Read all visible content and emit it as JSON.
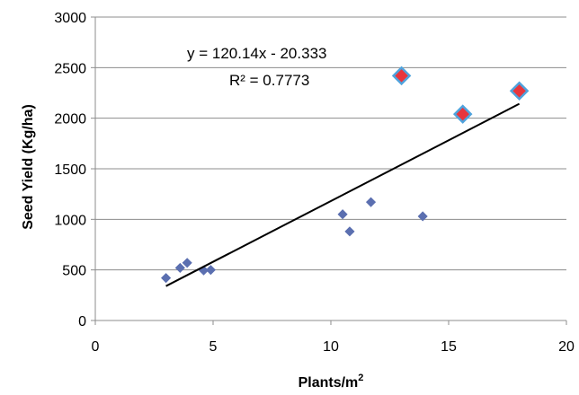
{
  "chart_data": {
    "type": "scatter",
    "xlabel": "Plants/m",
    "xlabel_superscript": "2",
    "ylabel": "Seed Yield (Kg/ha)",
    "xlim": [
      0,
      20
    ],
    "ylim": [
      0,
      3000
    ],
    "x_ticks": [
      "0",
      "5",
      "10",
      "15",
      "20"
    ],
    "y_ticks": [
      "0",
      "500",
      "1000",
      "1500",
      "2000",
      "2500",
      "3000"
    ],
    "grid": true,
    "legend": "none",
    "series": [
      {
        "marker": "diamond",
        "color": "#5b6fb0",
        "points": [
          {
            "x": 3.0,
            "y": 420
          },
          {
            "x": 3.6,
            "y": 520
          },
          {
            "x": 3.9,
            "y": 570
          },
          {
            "x": 4.6,
            "y": 495
          },
          {
            "x": 4.9,
            "y": 500
          },
          {
            "x": 10.5,
            "y": 1050
          },
          {
            "x": 10.8,
            "y": 880
          },
          {
            "x": 11.7,
            "y": 1170
          },
          {
            "x": 13.9,
            "y": 1030
          }
        ]
      },
      {
        "marker": "diamond",
        "color": "#e8363d",
        "border_color": "#4fa3dd",
        "points": [
          {
            "x": 13.0,
            "y": 2420
          },
          {
            "x": 15.6,
            "y": 2040
          },
          {
            "x": 18.0,
            "y": 2270
          }
        ]
      }
    ],
    "trendline": {
      "slope": 120.14,
      "intercept": -20.333,
      "x_start": 3.0,
      "x_end": 18.0,
      "color": "#000000"
    },
    "annotations": [
      "y = 120.14x - 20.333",
      "R² = 0.7773"
    ]
  }
}
